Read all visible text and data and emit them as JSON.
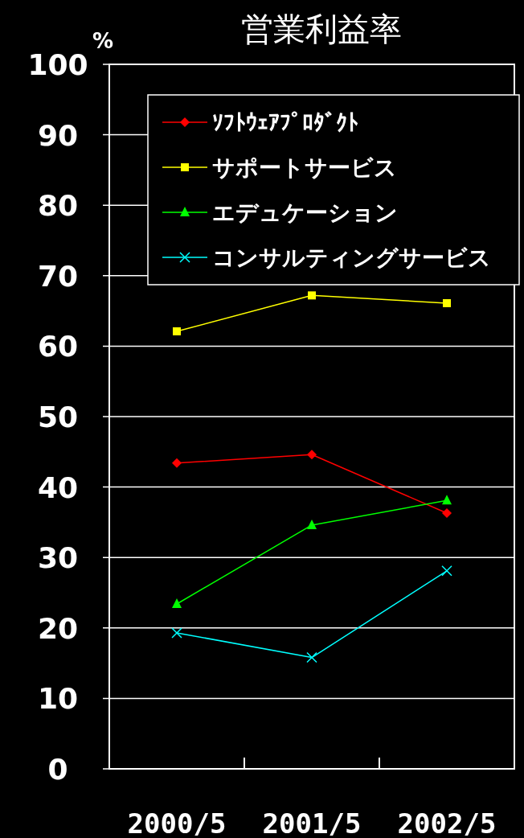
{
  "chart_data": {
    "type": "line",
    "title": "営業利益率",
    "ylabel": "%",
    "categories": [
      "2000/5",
      "2001/5",
      "2002/5"
    ],
    "series": [
      {
        "name": "ｿﾌﾄｳｪｱﾌﾟﾛﾀﾞｸﾄ",
        "color": "#ff0000",
        "marker": "diamond",
        "values": [
          43.4,
          44.6,
          36.3
        ]
      },
      {
        "name": "サポートサービス",
        "color": "#ffff00",
        "marker": "square",
        "values": [
          62.1,
          67.2,
          66.1
        ]
      },
      {
        "name": "エデュケーション",
        "color": "#00ff00",
        "marker": "triangle",
        "values": [
          23.4,
          34.6,
          38.1
        ]
      },
      {
        "name": "コンサルティングサービス",
        "color": "#00ffff",
        "marker": "cross",
        "values": [
          19.3,
          15.8,
          28.1
        ]
      }
    ],
    "ylim": [
      0,
      100
    ],
    "yticks": [
      0,
      10,
      20,
      30,
      40,
      50,
      60,
      70,
      80,
      90,
      100
    ],
    "grid": "y",
    "legend": "top left"
  }
}
